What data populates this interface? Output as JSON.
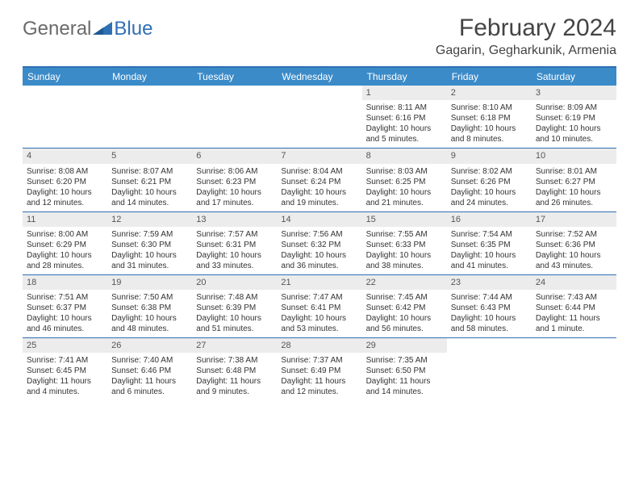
{
  "logo": {
    "general": "General",
    "blue": "Blue"
  },
  "title": "February 2024",
  "location": "Gagarin, Gegharkunik, Armenia",
  "colors": {
    "header_bg": "#3b8bc9",
    "header_border": "#2f6fb3",
    "daynum_bg": "#ececec",
    "logo_gray": "#6a6a6a",
    "logo_blue": "#2f6fb3",
    "text": "#333333"
  },
  "day_names": [
    "Sunday",
    "Monday",
    "Tuesday",
    "Wednesday",
    "Thursday",
    "Friday",
    "Saturday"
  ],
  "weeks": [
    [
      null,
      null,
      null,
      null,
      {
        "n": "1",
        "sr": "8:11 AM",
        "ss": "6:16 PM",
        "dl": "10 hours and 5 minutes."
      },
      {
        "n": "2",
        "sr": "8:10 AM",
        "ss": "6:18 PM",
        "dl": "10 hours and 8 minutes."
      },
      {
        "n": "3",
        "sr": "8:09 AM",
        "ss": "6:19 PM",
        "dl": "10 hours and 10 minutes."
      }
    ],
    [
      {
        "n": "4",
        "sr": "8:08 AM",
        "ss": "6:20 PM",
        "dl": "10 hours and 12 minutes."
      },
      {
        "n": "5",
        "sr": "8:07 AM",
        "ss": "6:21 PM",
        "dl": "10 hours and 14 minutes."
      },
      {
        "n": "6",
        "sr": "8:06 AM",
        "ss": "6:23 PM",
        "dl": "10 hours and 17 minutes."
      },
      {
        "n": "7",
        "sr": "8:04 AM",
        "ss": "6:24 PM",
        "dl": "10 hours and 19 minutes."
      },
      {
        "n": "8",
        "sr": "8:03 AM",
        "ss": "6:25 PM",
        "dl": "10 hours and 21 minutes."
      },
      {
        "n": "9",
        "sr": "8:02 AM",
        "ss": "6:26 PM",
        "dl": "10 hours and 24 minutes."
      },
      {
        "n": "10",
        "sr": "8:01 AM",
        "ss": "6:27 PM",
        "dl": "10 hours and 26 minutes."
      }
    ],
    [
      {
        "n": "11",
        "sr": "8:00 AM",
        "ss": "6:29 PM",
        "dl": "10 hours and 28 minutes."
      },
      {
        "n": "12",
        "sr": "7:59 AM",
        "ss": "6:30 PM",
        "dl": "10 hours and 31 minutes."
      },
      {
        "n": "13",
        "sr": "7:57 AM",
        "ss": "6:31 PM",
        "dl": "10 hours and 33 minutes."
      },
      {
        "n": "14",
        "sr": "7:56 AM",
        "ss": "6:32 PM",
        "dl": "10 hours and 36 minutes."
      },
      {
        "n": "15",
        "sr": "7:55 AM",
        "ss": "6:33 PM",
        "dl": "10 hours and 38 minutes."
      },
      {
        "n": "16",
        "sr": "7:54 AM",
        "ss": "6:35 PM",
        "dl": "10 hours and 41 minutes."
      },
      {
        "n": "17",
        "sr": "7:52 AM",
        "ss": "6:36 PM",
        "dl": "10 hours and 43 minutes."
      }
    ],
    [
      {
        "n": "18",
        "sr": "7:51 AM",
        "ss": "6:37 PM",
        "dl": "10 hours and 46 minutes."
      },
      {
        "n": "19",
        "sr": "7:50 AM",
        "ss": "6:38 PM",
        "dl": "10 hours and 48 minutes."
      },
      {
        "n": "20",
        "sr": "7:48 AM",
        "ss": "6:39 PM",
        "dl": "10 hours and 51 minutes."
      },
      {
        "n": "21",
        "sr": "7:47 AM",
        "ss": "6:41 PM",
        "dl": "10 hours and 53 minutes."
      },
      {
        "n": "22",
        "sr": "7:45 AM",
        "ss": "6:42 PM",
        "dl": "10 hours and 56 minutes."
      },
      {
        "n": "23",
        "sr": "7:44 AM",
        "ss": "6:43 PM",
        "dl": "10 hours and 58 minutes."
      },
      {
        "n": "24",
        "sr": "7:43 AM",
        "ss": "6:44 PM",
        "dl": "11 hours and 1 minute."
      }
    ],
    [
      {
        "n": "25",
        "sr": "7:41 AM",
        "ss": "6:45 PM",
        "dl": "11 hours and 4 minutes."
      },
      {
        "n": "26",
        "sr": "7:40 AM",
        "ss": "6:46 PM",
        "dl": "11 hours and 6 minutes."
      },
      {
        "n": "27",
        "sr": "7:38 AM",
        "ss": "6:48 PM",
        "dl": "11 hours and 9 minutes."
      },
      {
        "n": "28",
        "sr": "7:37 AM",
        "ss": "6:49 PM",
        "dl": "11 hours and 12 minutes."
      },
      {
        "n": "29",
        "sr": "7:35 AM",
        "ss": "6:50 PM",
        "dl": "11 hours and 14 minutes."
      },
      null,
      null
    ]
  ],
  "labels": {
    "sunrise": "Sunrise:",
    "sunset": "Sunset:",
    "daylight": "Daylight:"
  }
}
